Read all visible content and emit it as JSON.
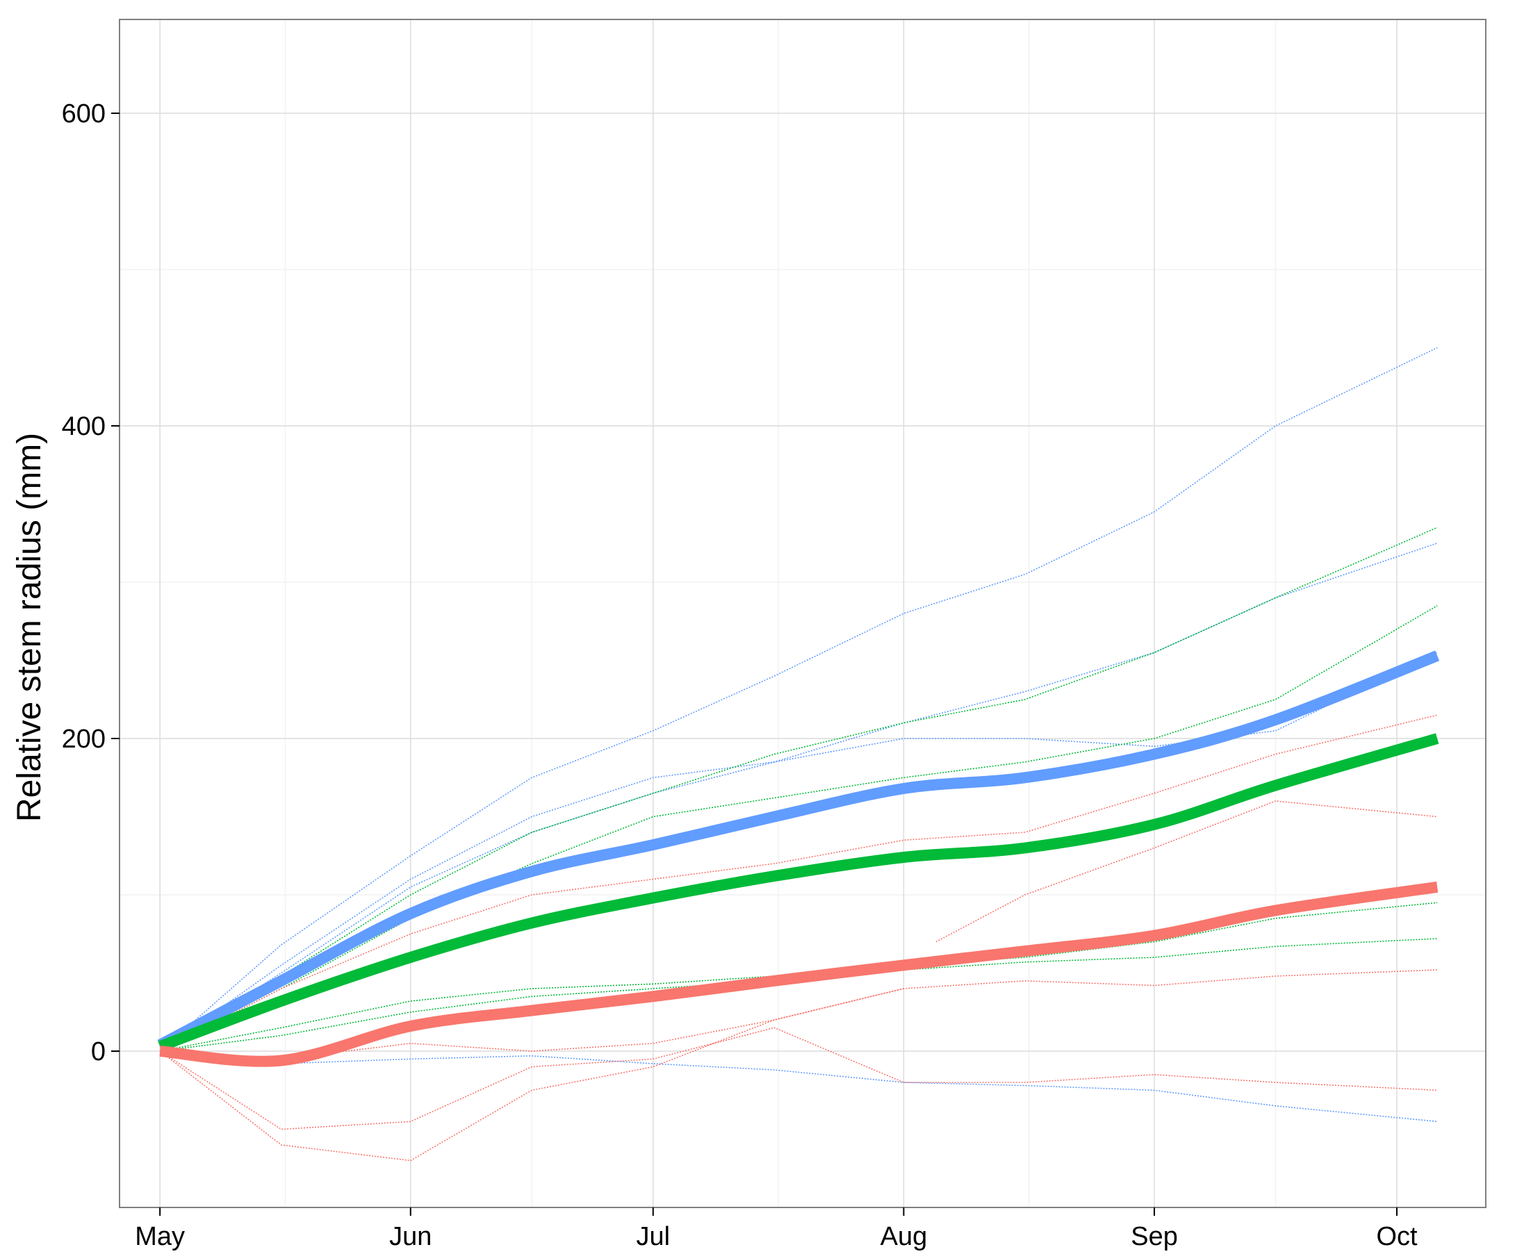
{
  "chart_data": {
    "type": "line",
    "title": "",
    "xlabel": "",
    "ylabel": "Relative stem radius (mm)",
    "x_ticks": [
      "May",
      "Jun",
      "Jul",
      "Aug",
      "Sep",
      "Oct"
    ],
    "y_ticks": [
      0,
      200,
      400,
      600
    ],
    "xlim": [
      "2012-04-26",
      "2012-10-12"
    ],
    "ylim": [
      -100,
      660
    ],
    "grid": true,
    "legend": "none",
    "colors": {
      "red": "#F8766D",
      "green": "#00BA38",
      "blue": "#619CFF"
    },
    "series": [
      {
        "color": "#619CFF",
        "role": "smooth",
        "x": [
          "2012-05-01",
          "2012-05-16",
          "2012-06-01",
          "2012-06-16",
          "2012-07-01",
          "2012-07-16",
          "2012-08-01",
          "2012-08-16",
          "2012-09-01",
          "2012-09-16",
          "2012-10-06"
        ],
        "values": [
          4,
          45,
          88,
          115,
          132,
          150,
          168,
          175,
          190,
          212,
          253
        ]
      },
      {
        "color": "#00BA38",
        "role": "smooth",
        "x": [
          "2012-05-01",
          "2012-05-16",
          "2012-06-01",
          "2012-06-16",
          "2012-07-01",
          "2012-07-16",
          "2012-08-01",
          "2012-08-16",
          "2012-09-01",
          "2012-09-16",
          "2012-10-06"
        ],
        "values": [
          3,
          32,
          60,
          82,
          98,
          112,
          124,
          130,
          145,
          170,
          200
        ]
      },
      {
        "color": "#F8766D",
        "role": "smooth",
        "x": [
          "2012-05-01",
          "2012-05-16",
          "2012-06-01",
          "2012-06-16",
          "2012-07-01",
          "2012-07-16",
          "2012-08-01",
          "2012-08-16",
          "2012-09-01",
          "2012-09-16",
          "2012-10-06"
        ],
        "values": [
          0,
          -6,
          16,
          26,
          35,
          45,
          55,
          64,
          74,
          90,
          105
        ]
      },
      {
        "color": "#619CFF",
        "role": "raw",
        "x": [
          "2012-05-01",
          "2012-05-16",
          "2012-06-01",
          "2012-06-16",
          "2012-07-01",
          "2012-07-16",
          "2012-08-01",
          "2012-08-16",
          "2012-09-01",
          "2012-09-16",
          "2012-10-06"
        ],
        "values": [
          0,
          68,
          125,
          175,
          205,
          240,
          280,
          305,
          345,
          400,
          450
        ]
      },
      {
        "color": "#619CFF",
        "role": "raw",
        "x": [
          "2012-05-01",
          "2012-05-16",
          "2012-06-01",
          "2012-06-16",
          "2012-07-01",
          "2012-07-16",
          "2012-08-01",
          "2012-08-16",
          "2012-09-01",
          "2012-09-16",
          "2012-10-06"
        ],
        "values": [
          0,
          55,
          110,
          150,
          175,
          185,
          210,
          230,
          255,
          290,
          325
        ]
      },
      {
        "color": "#619CFF",
        "role": "raw",
        "x": [
          "2012-05-01",
          "2012-05-16",
          "2012-06-01",
          "2012-06-16",
          "2012-07-01",
          "2012-07-16",
          "2012-08-01",
          "2012-08-16",
          "2012-09-01",
          "2012-09-16",
          "2012-10-06"
        ],
        "values": [
          0,
          50,
          105,
          140,
          165,
          185,
          200,
          200,
          195,
          205,
          255
        ]
      },
      {
        "color": "#619CFF",
        "role": "raw",
        "x": [
          "2012-05-01",
          "2012-05-16",
          "2012-06-01",
          "2012-06-16",
          "2012-07-01",
          "2012-07-16",
          "2012-08-01",
          "2012-08-16",
          "2012-09-01",
          "2012-09-16",
          "2012-10-06"
        ],
        "values": [
          0,
          -8,
          -5,
          -3,
          -8,
          -12,
          -20,
          -22,
          -25,
          -35,
          -45
        ]
      },
      {
        "color": "#00BA38",
        "role": "raw",
        "x": [
          "2012-05-01",
          "2012-05-16",
          "2012-06-01",
          "2012-06-16",
          "2012-07-01",
          "2012-07-16",
          "2012-08-01",
          "2012-08-16",
          "2012-09-01",
          "2012-09-16",
          "2012-10-06"
        ],
        "values": [
          0,
          48,
          100,
          140,
          165,
          190,
          210,
          225,
          255,
          290,
          335
        ]
      },
      {
        "color": "#00BA38",
        "role": "raw",
        "x": [
          "2012-05-01",
          "2012-05-16",
          "2012-06-01",
          "2012-06-16",
          "2012-07-01",
          "2012-07-16",
          "2012-08-01",
          "2012-08-16",
          "2012-09-01",
          "2012-09-16",
          "2012-10-06"
        ],
        "values": [
          0,
          40,
          85,
          120,
          150,
          162,
          175,
          185,
          200,
          225,
          285
        ]
      },
      {
        "color": "#00BA38",
        "role": "raw",
        "x": [
          "2012-05-01",
          "2012-05-16",
          "2012-06-01",
          "2012-06-16",
          "2012-07-01",
          "2012-07-16",
          "2012-08-01",
          "2012-08-16",
          "2012-09-01",
          "2012-09-16",
          "2012-10-06"
        ],
        "values": [
          0,
          15,
          32,
          40,
          43,
          48,
          55,
          60,
          70,
          85,
          95
        ]
      },
      {
        "color": "#00BA38",
        "role": "raw",
        "x": [
          "2012-05-01",
          "2012-05-16",
          "2012-06-01",
          "2012-06-16",
          "2012-07-01",
          "2012-07-16",
          "2012-08-01",
          "2012-08-16",
          "2012-09-01",
          "2012-09-16",
          "2012-10-06"
        ],
        "values": [
          0,
          10,
          25,
          35,
          40,
          45,
          52,
          57,
          60,
          67,
          72
        ]
      },
      {
        "color": "#F8766D",
        "role": "raw",
        "x": [
          "2012-05-01",
          "2012-05-16",
          "2012-06-01",
          "2012-06-16",
          "2012-07-01",
          "2012-07-16",
          "2012-08-01",
          "2012-08-16",
          "2012-09-01",
          "2012-09-16",
          "2012-10-06"
        ],
        "values": [
          0,
          40,
          75,
          100,
          110,
          120,
          135,
          140,
          165,
          190,
          215
        ]
      },
      {
        "color": "#F8766D",
        "role": "raw",
        "x": [
          "2012-05-01",
          "2012-05-16",
          "2012-06-01",
          "2012-06-16",
          "2012-07-01",
          "2012-07-16",
          "2012-08-01",
          "2012-08-16",
          "2012-09-01",
          "2012-09-16",
          "2012-10-06"
        ],
        "values": [
          0,
          -5,
          5,
          0,
          5,
          20,
          40,
          45,
          42,
          48,
          52
        ]
      },
      {
        "color": "#F8766D",
        "role": "raw",
        "x": [
          "2012-05-01",
          "2012-05-16",
          "2012-06-01",
          "2012-06-16",
          "2012-07-01",
          "2012-07-16",
          "2012-08-01",
          "2012-08-16",
          "2012-09-01",
          "2012-09-16",
          "2012-10-06"
        ],
        "values": [
          0,
          -50,
          -45,
          -10,
          -5,
          15,
          -20,
          -20,
          -15,
          -20,
          -25
        ]
      },
      {
        "color": "#F8766D",
        "role": "raw",
        "x": [
          "2012-08-05",
          "2012-08-16",
          "2012-09-01",
          "2012-09-16",
          "2012-10-06"
        ],
        "values": [
          70,
          100,
          130,
          160,
          150
        ]
      },
      {
        "color": "#F8766D",
        "role": "raw",
        "x": [
          "2012-05-01",
          "2012-05-16",
          "2012-06-01",
          "2012-06-16",
          "2012-07-01",
          "2012-07-16",
          "2012-08-01"
        ],
        "values": [
          0,
          -60,
          -70,
          -25,
          -10,
          20,
          40
        ]
      }
    ]
  }
}
